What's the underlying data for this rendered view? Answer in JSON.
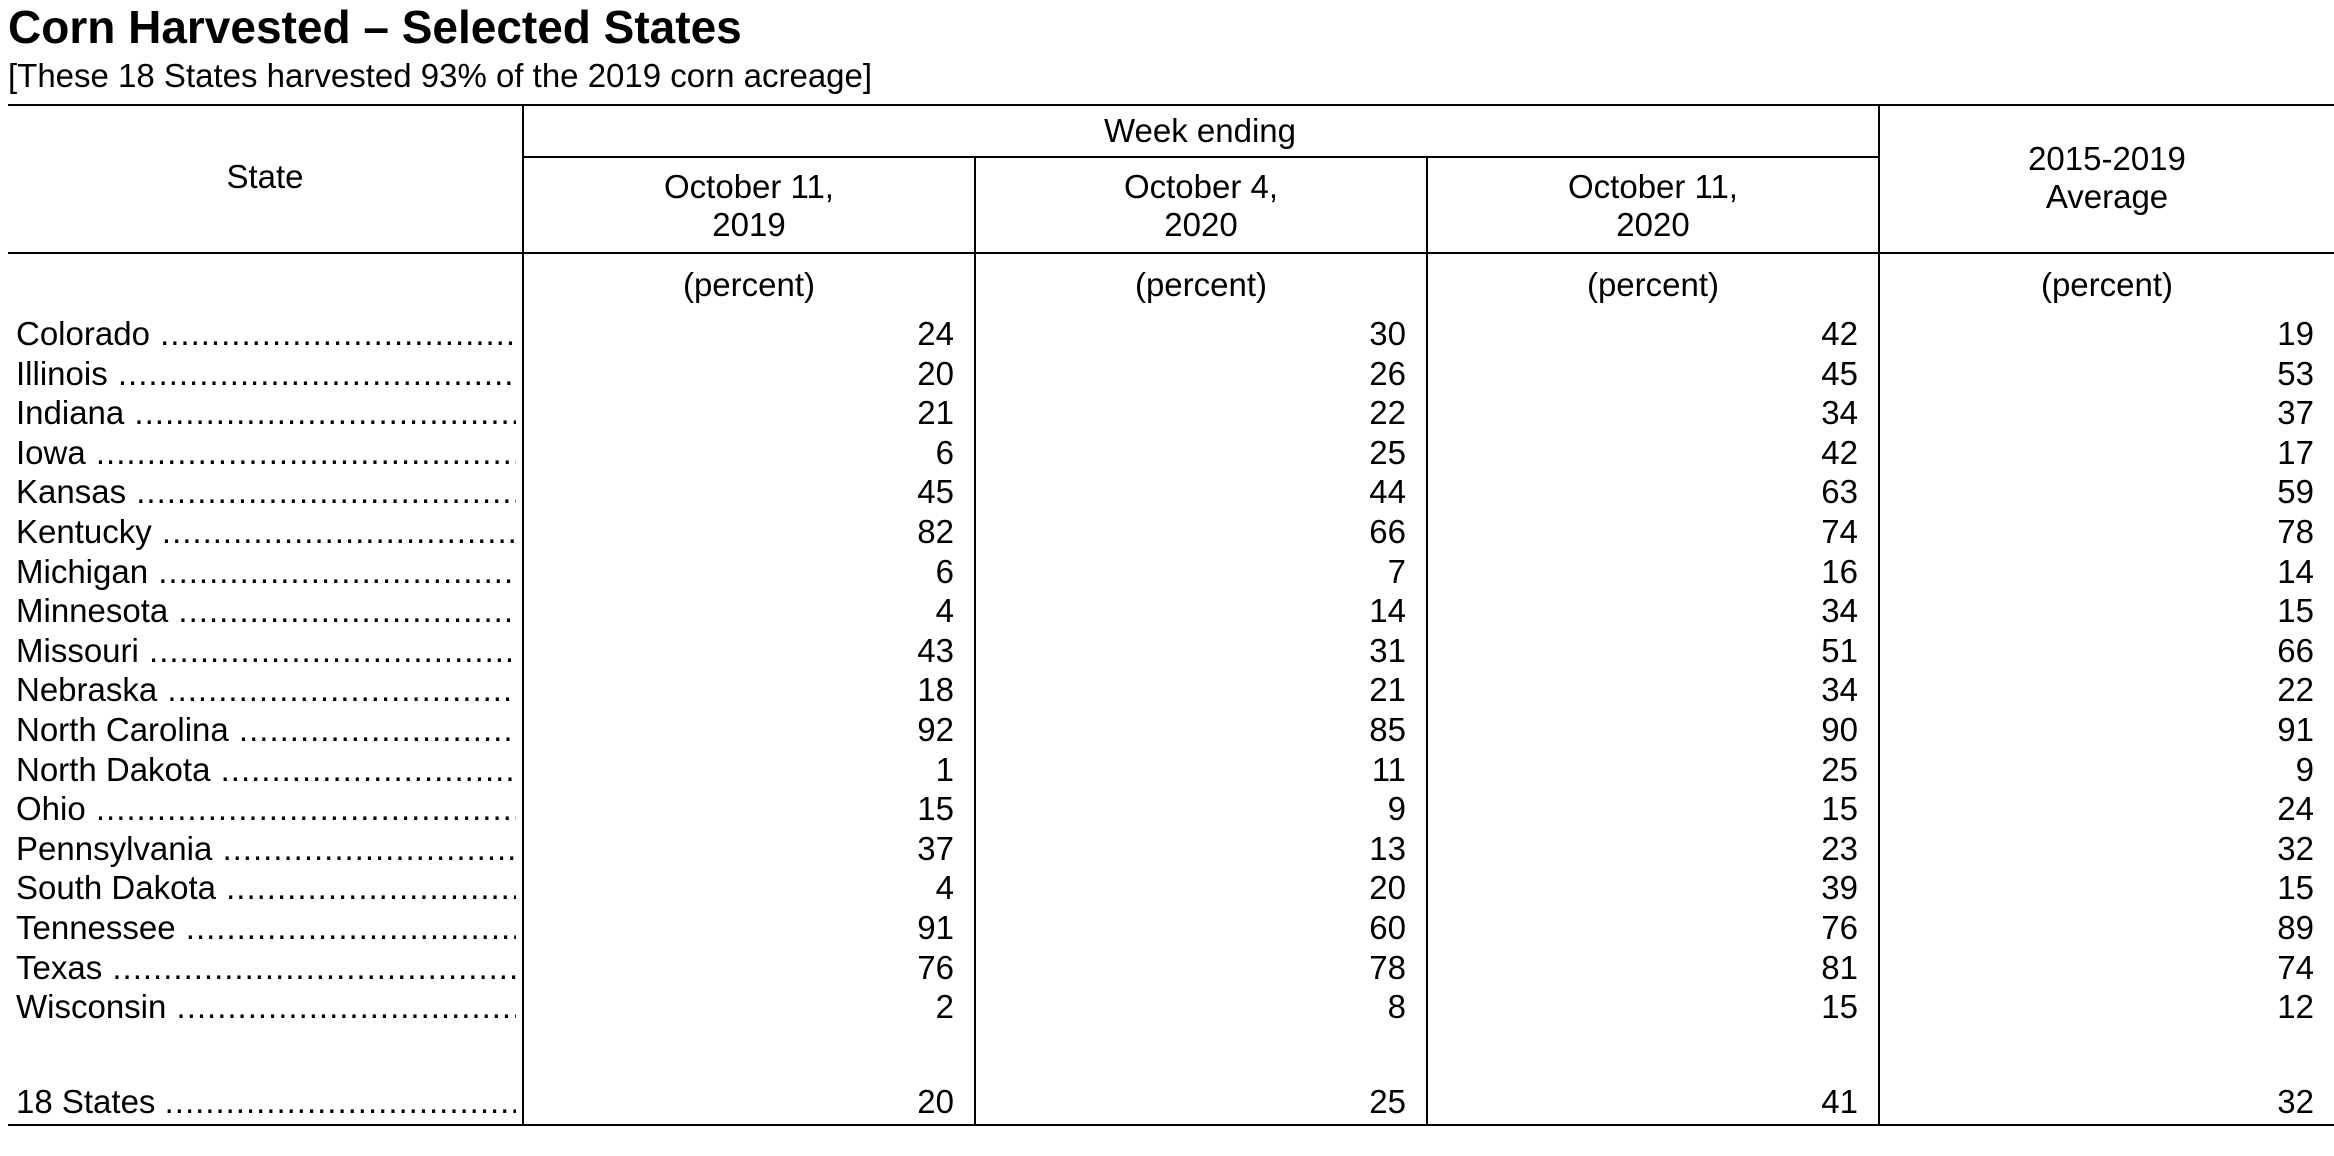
{
  "title": "Corn Harvested – Selected States",
  "subtitle": "[These 18 States harvested 93% of the 2019 corn acreage]",
  "table": {
    "state_header": "State",
    "group_header": "Week ending",
    "columns": [
      {
        "line1": "October 11,",
        "line2": "2019"
      },
      {
        "line1": "October 4,",
        "line2": "2020"
      },
      {
        "line1": "October 11,",
        "line2": "2020"
      }
    ],
    "avg_header": {
      "line1": "2015-2019",
      "line2": "Average"
    },
    "unit_label": "(percent)",
    "rows": [
      {
        "state": "Colorado",
        "values": [
          "24",
          "30",
          "42",
          "19"
        ]
      },
      {
        "state": "Illinois",
        "values": [
          "20",
          "26",
          "45",
          "53"
        ]
      },
      {
        "state": "Indiana",
        "values": [
          "21",
          "22",
          "34",
          "37"
        ]
      },
      {
        "state": "Iowa",
        "values": [
          "6",
          "25",
          "42",
          "17"
        ]
      },
      {
        "state": "Kansas",
        "values": [
          "45",
          "44",
          "63",
          "59"
        ]
      },
      {
        "state": "Kentucky",
        "values": [
          "82",
          "66",
          "74",
          "78"
        ]
      },
      {
        "state": "Michigan",
        "values": [
          "6",
          "7",
          "16",
          "14"
        ]
      },
      {
        "state": "Minnesota",
        "values": [
          "4",
          "14",
          "34",
          "15"
        ]
      },
      {
        "state": "Missouri",
        "values": [
          "43",
          "31",
          "51",
          "66"
        ]
      },
      {
        "state": "Nebraska",
        "values": [
          "18",
          "21",
          "34",
          "22"
        ]
      },
      {
        "state": "North Carolina",
        "values": [
          "92",
          "85",
          "90",
          "91"
        ]
      },
      {
        "state": "North Dakota",
        "values": [
          "1",
          "11",
          "25",
          "9"
        ]
      },
      {
        "state": "Ohio",
        "values": [
          "15",
          "9",
          "15",
          "24"
        ]
      },
      {
        "state": "Pennsylvania",
        "values": [
          "37",
          "13",
          "23",
          "32"
        ]
      },
      {
        "state": "South Dakota",
        "values": [
          "4",
          "20",
          "39",
          "15"
        ]
      },
      {
        "state": "Tennessee",
        "values": [
          "91",
          "60",
          "76",
          "89"
        ]
      },
      {
        "state": "Texas",
        "values": [
          "76",
          "78",
          "81",
          "74"
        ]
      },
      {
        "state": "Wisconsin",
        "values": [
          "2",
          "8",
          "15",
          "12"
        ]
      }
    ],
    "total": {
      "state": "18 States",
      "values": [
        "20",
        "25",
        "41",
        "32"
      ]
    }
  }
}
